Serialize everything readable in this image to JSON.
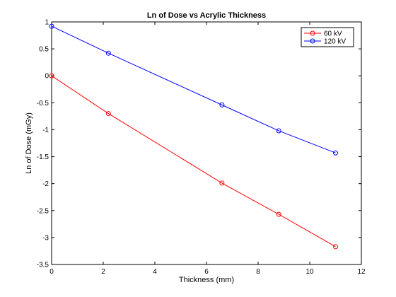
{
  "chart_data": {
    "type": "line",
    "title": "Ln of Dose vs Acrylic Thickness",
    "xlabel": "Thickness (mm)",
    "ylabel": "Ln of Dose (mGy)",
    "xlim": [
      0,
      12
    ],
    "ylim": [
      -3.5,
      1
    ],
    "xticks": [
      0,
      2,
      4,
      6,
      8,
      10,
      12
    ],
    "yticks": [
      -3.5,
      -3,
      -2.5,
      -2,
      -1.5,
      -1,
      -0.5,
      0,
      0.5,
      1
    ],
    "xtick_labels": [
      "0",
      "2",
      "4",
      "6",
      "8",
      "10",
      "12"
    ],
    "ytick_labels": [
      "-3.5",
      "-3",
      "-2.5",
      "-2",
      "-1.5",
      "-1",
      "-0.5",
      "0",
      "0.5",
      "1"
    ],
    "grid": false,
    "legend_position": "top-right",
    "series": [
      {
        "name": "60 kV",
        "color": "#ff0000",
        "marker": "circle",
        "x": [
          0,
          2.2,
          6.6,
          8.8,
          11
        ],
        "y": [
          0.0,
          -0.7,
          -1.99,
          -2.57,
          -3.17
        ]
      },
      {
        "name": "120 kV",
        "color": "#0000ff",
        "marker": "circle",
        "x": [
          0,
          2.2,
          6.6,
          8.8,
          11
        ],
        "y": [
          0.92,
          0.42,
          -0.54,
          -1.02,
          -1.43
        ]
      }
    ]
  }
}
